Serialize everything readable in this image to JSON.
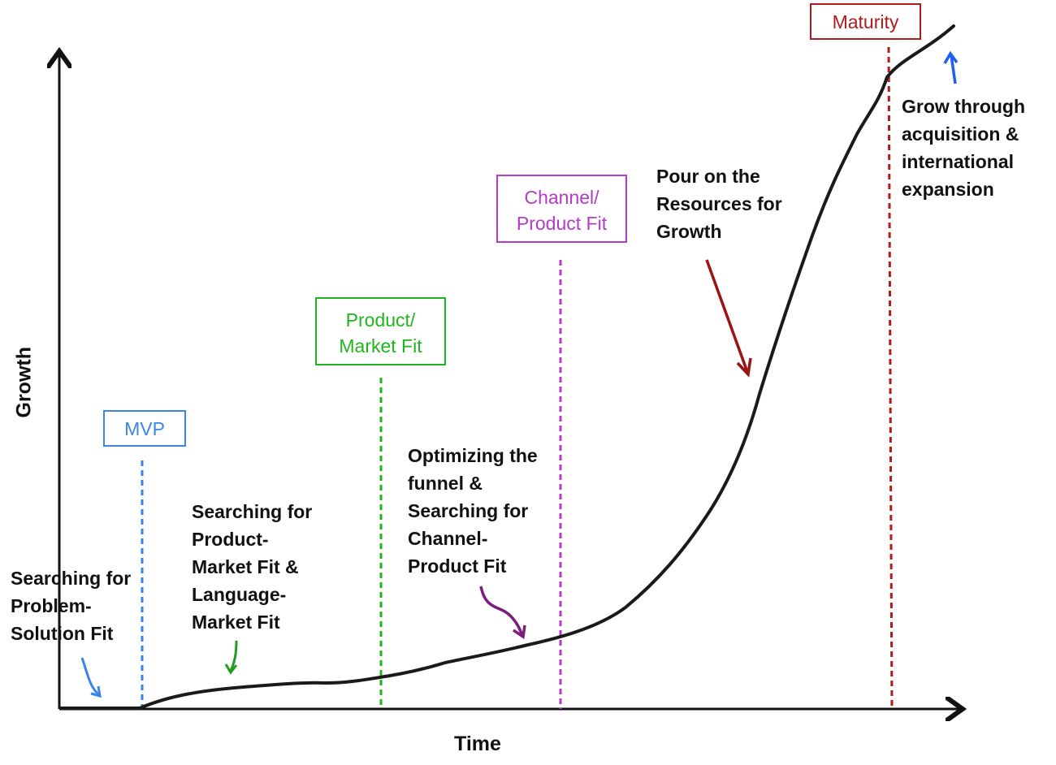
{
  "axes": {
    "x_label": "Time",
    "y_label": "Growth"
  },
  "milestones": [
    {
      "id": "mvp",
      "label_lines": [
        "MVP"
      ],
      "color": "#3a86e8"
    },
    {
      "id": "product-market-fit",
      "label_lines": [
        "Product/",
        "Market Fit"
      ],
      "color": "#1fb51f"
    },
    {
      "id": "channel-product-fit",
      "label_lines": [
        "Channel/",
        "Product Fit"
      ],
      "color": "#b33bc7"
    },
    {
      "id": "maturity",
      "label_lines": [
        "Maturity"
      ],
      "color": "#b01b1b"
    }
  ],
  "annotations": [
    {
      "id": "problem-solution",
      "lines": [
        "Searching for",
        "Problem-",
        "Solution Fit"
      ],
      "arrow_color": "#3a86e8"
    },
    {
      "id": "product-market-language",
      "lines": [
        "Searching for",
        "Product-",
        "Market Fit &",
        "Language-",
        "Market Fit"
      ],
      "arrow_color": "#1f9c1f"
    },
    {
      "id": "optimizing-funnel",
      "lines": [
        "Optimizing the",
        "funnel &",
        "Searching for",
        "Channel-",
        "Product Fit"
      ],
      "arrow_color": "#7a1f7a"
    },
    {
      "id": "pour-resources",
      "lines": [
        "Pour on the",
        "Resources for",
        "Growth"
      ],
      "arrow_color": "#9b1414"
    },
    {
      "id": "grow-acquisition",
      "lines": [
        "Grow through",
        "acquisition &",
        "international",
        "expansion"
      ],
      "arrow_color": "#1e5ef0"
    }
  ]
}
